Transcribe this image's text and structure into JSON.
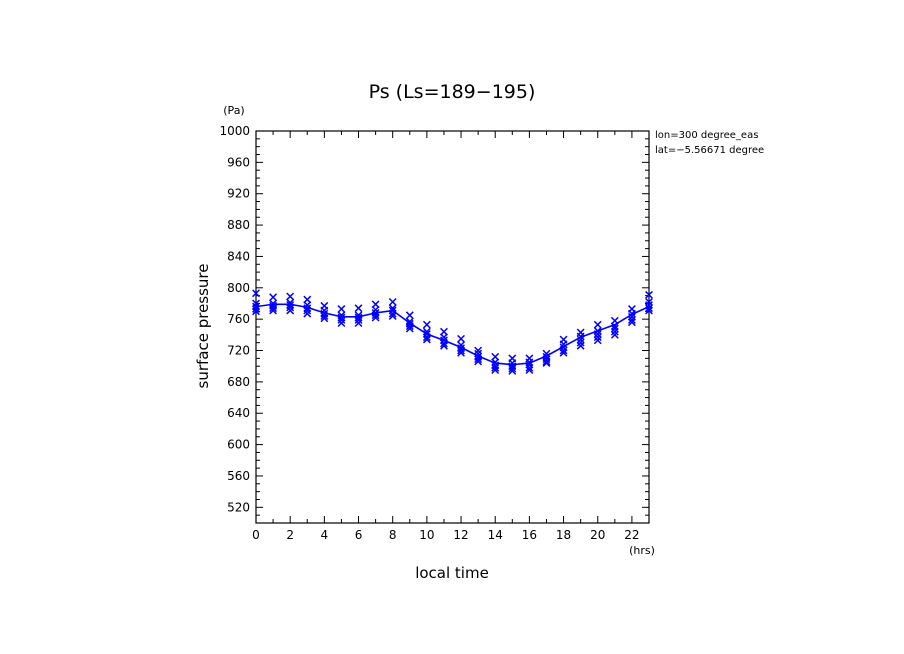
{
  "chart_data": {
    "type": "scatter",
    "title": "Ps (Ls=189−195)",
    "xlabel": "local time",
    "ylabel": "surface pressure",
    "xunit": "(hrs)",
    "yunit": "(Pa)",
    "annotations": [
      "lon=300 degree_eas",
      "lat=−5.56671 degree"
    ],
    "xlim": [
      0,
      23
    ],
    "ylim": [
      500,
      1000
    ],
    "xticks": [
      0,
      2,
      4,
      6,
      8,
      10,
      12,
      14,
      16,
      18,
      20,
      22
    ],
    "xtick_labels": [
      "0",
      "2",
      "4",
      "6",
      "8",
      "10",
      "12",
      "14",
      "16",
      "18",
      "20",
      "22"
    ],
    "yticks": [
      520,
      560,
      600,
      640,
      680,
      720,
      760,
      800,
      840,
      880,
      920,
      960,
      1000
    ],
    "ytick_labels": [
      "520",
      "560",
      "600",
      "640",
      "680",
      "720",
      "760",
      "800",
      "840",
      "880",
      "920",
      "960",
      "1000"
    ],
    "grid": false,
    "color": "#0000ff",
    "series": [
      {
        "kind": "line",
        "x": [
          0,
          1,
          2,
          3,
          4,
          5,
          6,
          7,
          8,
          9,
          10,
          11,
          12,
          13,
          14,
          15,
          16,
          17,
          18,
          19,
          20,
          21,
          22,
          23
        ],
        "y": [
          776,
          779,
          779,
          775,
          768,
          763,
          763,
          768,
          771,
          755,
          741,
          733,
          724,
          713,
          704,
          702,
          704,
          713,
          725,
          737,
          745,
          753,
          766,
          776
        ]
      },
      {
        "kind": "markers",
        "marker": "x",
        "x": [
          0,
          0,
          0,
          0,
          0,
          1,
          1,
          1,
          1,
          1,
          2,
          2,
          2,
          2,
          2,
          3,
          3,
          3,
          3,
          3,
          4,
          4,
          4,
          4,
          4,
          5,
          5,
          5,
          5,
          5,
          6,
          6,
          6,
          6,
          6,
          7,
          7,
          7,
          7,
          7,
          8,
          8,
          8,
          8,
          8,
          9,
          9,
          9,
          9,
          9,
          10,
          10,
          10,
          10,
          10,
          11,
          11,
          11,
          11,
          11,
          12,
          12,
          12,
          12,
          12,
          13,
          13,
          13,
          13,
          13,
          14,
          14,
          14,
          14,
          14,
          15,
          15,
          15,
          15,
          15,
          16,
          16,
          16,
          16,
          16,
          17,
          17,
          17,
          17,
          17,
          18,
          18,
          18,
          18,
          18,
          19,
          19,
          19,
          19,
          19,
          20,
          20,
          20,
          20,
          20,
          21,
          21,
          21,
          21,
          21,
          22,
          22,
          22,
          22,
          22,
          23,
          23,
          23,
          23,
          23
        ],
        "y": [
          793,
          780,
          776,
          773,
          770,
          788,
          780,
          777,
          774,
          771,
          789,
          781,
          778,
          775,
          771,
          785,
          778,
          774,
          771,
          767,
          777,
          771,
          767,
          764,
          761,
          773,
          765,
          762,
          759,
          755,
          774,
          765,
          762,
          759,
          755,
          779,
          772,
          768,
          765,
          762,
          782,
          774,
          771,
          767,
          764,
          765,
          757,
          754,
          751,
          748,
          753,
          744,
          741,
          737,
          734,
          744,
          737,
          733,
          729,
          726,
          735,
          727,
          723,
          720,
          717,
          720,
          716,
          712,
          709,
          706,
          712,
          705,
          701,
          698,
          695,
          710,
          704,
          700,
          697,
          694,
          710,
          705,
          702,
          698,
          695,
          716,
          712,
          709,
          706,
          704,
          734,
          728,
          724,
          720,
          717,
          743,
          738,
          734,
          730,
          726,
          753,
          745,
          741,
          737,
          733,
          758,
          751,
          748,
          744,
          740,
          773,
          767,
          763,
          759,
          756,
          791,
          782,
          778,
          774,
          771
        ]
      }
    ]
  }
}
